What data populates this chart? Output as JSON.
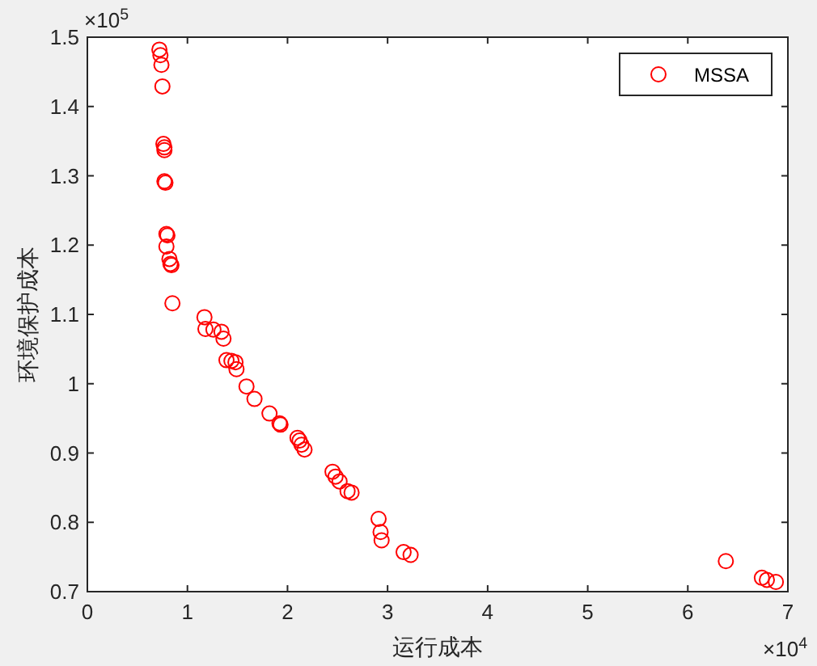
{
  "chart_data": {
    "type": "scatter",
    "xlabel": "运行成本",
    "ylabel": "环境保护成本",
    "annotations": [
      "×10$^{5}$",
      "×10$^{4}$"
    ],
    "series": [
      {
        "name": "MSSA",
        "color": "#ff0000",
        "x": [
          0.72,
          0.73,
          0.74,
          0.75,
          0.76,
          0.77,
          0.77,
          0.77,
          0.78,
          0.79,
          0.8,
          0.79,
          0.82,
          0.83,
          0.84,
          0.85,
          1.17,
          1.18,
          1.26,
          1.34,
          1.36,
          1.39,
          1.44,
          1.48,
          1.49,
          1.59,
          1.67,
          1.82,
          1.92,
          1.93,
          2.1,
          2.12,
          2.14,
          2.17,
          2.45,
          2.48,
          2.52,
          2.6,
          2.64,
          2.91,
          2.93,
          2.94,
          3.16,
          3.23,
          6.38,
          6.74,
          6.79,
          6.88
        ],
        "values": [
          1.482,
          1.474,
          1.46,
          1.429,
          1.346,
          1.341,
          1.337,
          1.292,
          1.29,
          1.216,
          1.214,
          1.198,
          1.18,
          1.173,
          1.171,
          1.116,
          1.096,
          1.079,
          1.078,
          1.075,
          1.065,
          1.034,
          1.033,
          1.031,
          1.021,
          0.996,
          0.978,
          0.957,
          0.943,
          0.941,
          0.922,
          0.918,
          0.912,
          0.905,
          0.873,
          0.866,
          0.859,
          0.845,
          0.843,
          0.805,
          0.786,
          0.774,
          0.757,
          0.753,
          0.744,
          0.72,
          0.717,
          0.714
        ]
      }
    ],
    "xlim": [
      0,
      7
    ],
    "ylim": [
      0.7,
      1.5
    ],
    "xticks": [
      0,
      1,
      2,
      3,
      4,
      5,
      6,
      7
    ],
    "yticks": [
      0.7,
      0.8,
      0.9,
      1,
      1.1,
      1.2,
      1.3,
      1.4,
      1.5
    ],
    "marker": "circle",
    "grid": false,
    "legend": "top right"
  }
}
